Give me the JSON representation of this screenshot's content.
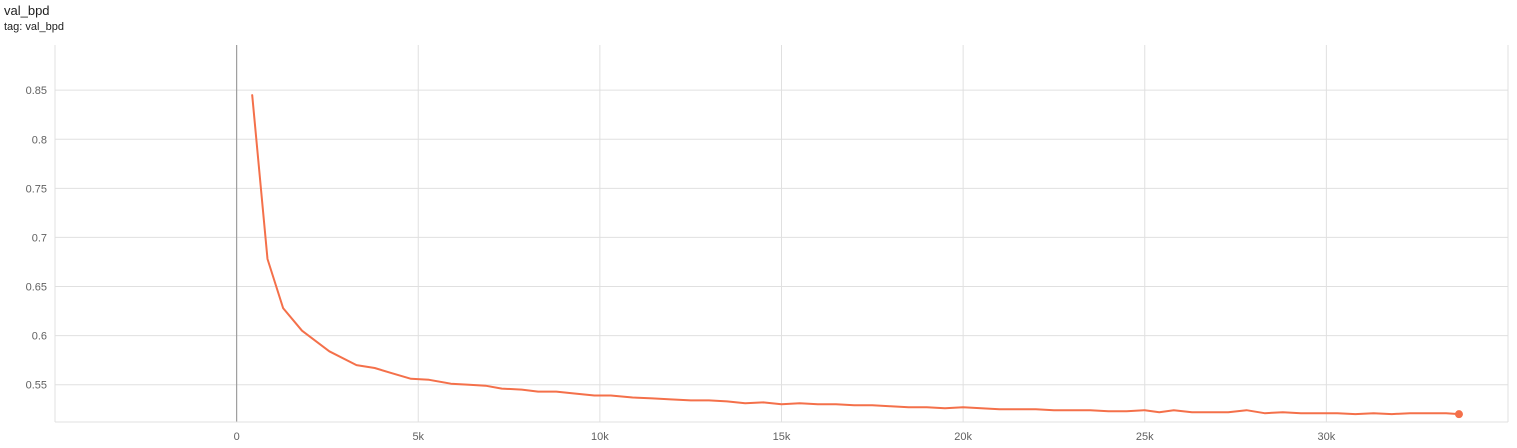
{
  "card": {
    "title": "val_bpd",
    "tag": "tag: val_bpd"
  },
  "colors": {
    "series": "#f4704a",
    "grid": "#e0e0e0",
    "zero_axis": "#9e9e9e",
    "tick_text": "#616161"
  },
  "chart_data": {
    "type": "line",
    "title": "val_bpd",
    "xlabel": "",
    "ylabel": "",
    "xlim": [
      -5000,
      35000
    ],
    "ylim": [
      0.512,
      0.896
    ],
    "grid": true,
    "x_ticks": [
      0,
      5000,
      10000,
      15000,
      20000,
      25000,
      30000
    ],
    "x_tick_labels": [
      "0",
      "5k",
      "10k",
      "15k",
      "20k",
      "25k",
      "30k"
    ],
    "y_ticks": [
      0.55,
      0.6,
      0.65,
      0.7,
      0.75,
      0.8,
      0.85
    ],
    "y_tick_labels": [
      "0.55",
      "0.6",
      "0.65",
      "0.7",
      "0.75",
      "0.8",
      "0.85"
    ],
    "series": [
      {
        "x": [
          430,
          850,
          1280,
          1800,
          2550,
          3300,
          3800,
          4250,
          4800,
          5300,
          5900,
          6400,
          6850,
          7300,
          7850,
          8300,
          8800,
          9300,
          9850,
          10300,
          10900,
          11450,
          11950,
          12500,
          13000,
          13500,
          14000,
          14500,
          15000,
          15500,
          16000,
          16500,
          17000,
          17500,
          18000,
          18500,
          19000,
          19500,
          20000,
          20500,
          21000,
          21500,
          22000,
          22500,
          23000,
          23500,
          24000,
          24500,
          25000,
          25400,
          25800,
          26300,
          26800,
          27300,
          27800,
          28300,
          28800,
          29300,
          29800,
          30300,
          30800,
          31300,
          31800,
          32300,
          32800,
          33300,
          33650
        ],
        "y": [
          0.845,
          0.678,
          0.628,
          0.605,
          0.584,
          0.57,
          0.567,
          0.562,
          0.556,
          0.555,
          0.551,
          0.55,
          0.549,
          0.546,
          0.545,
          0.543,
          0.543,
          0.541,
          0.539,
          0.539,
          0.537,
          0.536,
          0.535,
          0.534,
          0.534,
          0.533,
          0.531,
          0.532,
          0.53,
          0.531,
          0.53,
          0.53,
          0.529,
          0.529,
          0.528,
          0.527,
          0.527,
          0.526,
          0.527,
          0.526,
          0.525,
          0.525,
          0.525,
          0.524,
          0.524,
          0.524,
          0.523,
          0.523,
          0.524,
          0.522,
          0.524,
          0.522,
          0.522,
          0.522,
          0.524,
          0.521,
          0.522,
          0.521,
          0.521,
          0.521,
          0.52,
          0.521,
          0.52,
          0.521,
          0.521,
          0.521,
          0.52
        ]
      }
    ]
  }
}
